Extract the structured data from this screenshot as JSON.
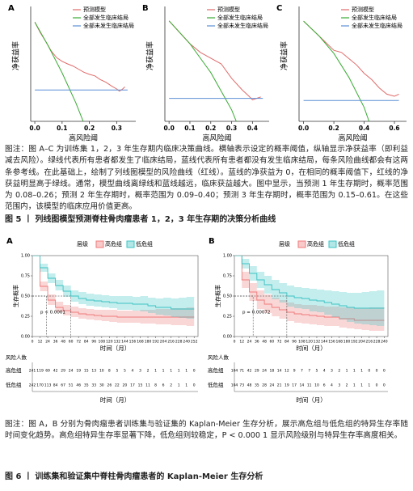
{
  "figure5": {
    "panels": [
      {
        "label": "A",
        "y_label": "净获益率",
        "x_label": "高风险阈",
        "xlim": [
          -0.015,
          0.37
        ],
        "ylim": [
          -0.06,
          0.16
        ],
        "xticks": [
          {
            "value": 0,
            "label": "0.0"
          },
          0.1,
          0.2,
          0.3
        ],
        "series": [
          {
            "name": "预测模型",
            "color": "#e06a6a",
            "x": [
              0,
              0.02,
              0.04,
              0.06,
              0.08,
              0.1,
              0.12,
              0.14,
              0.16,
              0.18,
              0.2,
              0.22,
              0.24,
              0.26,
              0.28,
              0.3,
              0.31,
              0.32,
              0.33
            ],
            "values": [
              0.13,
              0.11,
              0.093,
              0.075,
              0.062,
              0.055,
              0.05,
              0.046,
              0.04,
              0.034,
              0.03,
              0.027,
              0.02,
              0.015,
              0.008,
              0.002,
              -0.002,
              0.001,
              0.006
            ]
          },
          {
            "name": "全部发生临床结局",
            "color": "#3aaa35",
            "x": [
              0,
              0.05,
              0.1,
              0.15,
              0.2
            ],
            "values": [
              0.13,
              0.084,
              0.033,
              -0.024,
              -0.09
            ]
          },
          {
            "name": "全部未发生临床结局",
            "color": "#5b8fd6",
            "x": [
              0,
              0.34
            ],
            "values": [
              0,
              0
            ]
          }
        ]
      },
      {
        "label": "B",
        "y_label": "净获益率",
        "x_label": "高风险阈",
        "xlim": [
          -0.02,
          0.48
        ],
        "ylim": [
          -0.08,
          0.32
        ],
        "xticks": [
          {
            "value": 0,
            "label": "0.0"
          },
          0.1,
          0.2,
          0.3,
          0.4
        ],
        "series": [
          {
            "name": "预测模型",
            "color": "#e06a6a",
            "x": [
              0,
              0.05,
              0.1,
              0.15,
              0.2,
              0.25,
              0.3,
              0.35,
              0.38,
              0.4,
              0.42,
              0.44
            ],
            "values": [
              0.27,
              0.23,
              0.19,
              0.16,
              0.14,
              0.12,
              0.07,
              0.03,
              0.01,
              -0.005,
              0,
              0.005
            ]
          },
          {
            "name": "全部发生临床结局",
            "color": "#3aaa35",
            "x": [
              0,
              0.1,
              0.2,
              0.3,
              0.4
            ],
            "values": [
              0.27,
              0.19,
              0.09,
              -0.04,
              -0.22
            ]
          },
          {
            "name": "全部未发生临床结局",
            "color": "#5b8fd6",
            "x": [
              0,
              0.45
            ],
            "values": [
              0,
              0
            ]
          }
        ]
      },
      {
        "label": "C",
        "y_label": "净获益率",
        "x_label": "高风险阈",
        "xlim": [
          -0.03,
          0.68
        ],
        "ylim": [
          -0.1,
          0.45
        ],
        "xticks": [
          {
            "value": 0,
            "label": "0.0"
          },
          0.2,
          0.4,
          0.6
        ],
        "series": [
          {
            "name": "预测模型",
            "color": "#e06a6a",
            "x": [
              0,
              0.1,
              0.2,
              0.25,
              0.3,
              0.35,
              0.4,
              0.45,
              0.5,
              0.55,
              0.6,
              0.63
            ],
            "values": [
              0.38,
              0.31,
              0.24,
              0.23,
              0.2,
              0.17,
              0.13,
              0.1,
              0.06,
              0.03,
              0.02,
              0.03
            ]
          },
          {
            "name": "全部发生临床结局",
            "color": "#3aaa35",
            "x": [
              0,
              0.1,
              0.2,
              0.3,
              0.4,
              0.5
            ],
            "values": [
              0.38,
              0.31,
              0.225,
              0.11,
              -0.033,
              -0.24
            ]
          },
          {
            "name": "全部未发生临床结局",
            "color": "#5b8fd6",
            "x": [
              0,
              0.63
            ],
            "values": [
              0,
              0
            ]
          }
        ]
      }
    ],
    "caption": "图注：图 A–C 为训练集 1，2，3 年生存期内临床决策曲线。横轴表示设定的概率阈值，纵轴显示净获益率（即利益减去风险）。绿线代表所有患者都发生了临床结局，蓝线代表所有患者都没有发生临床结局，每条风险曲线都会有这两条参考线。在此基础上，绘制了列线图模型的风险曲线（红线）。蓝线的净获益为 0，在相同的概率阈值下，红线的净获益明显高于绿线。通常，模型曲线离绿线和蓝线越远，临床获益越大。图中显示，当预测 1 年生存期时，概率范围为 0.08–0.26；预测 2 年生存期时，概率范围为 0.09–0.40；预测 3 年生存期时，概率范围为 0.15–0.61。在这些范围内，该模型的临床应用价值更高。",
    "title": "图 5 丨 列线图模型预测脊柱骨肉瘤患者 1，2，3 年生存期的决策分析曲线"
  },
  "figure6": {
    "panels": [
      {
        "label": "A",
        "legend_title": "层级",
        "y_label": "生存概率",
        "x_label": "时间（月）",
        "p_value": "p < 0.0001",
        "median_line": 0.5,
        "xlim": [
          0,
          258
        ],
        "ylim": [
          0,
          1
        ],
        "yticks": [
          {
            "value": 0,
            "label": "0.00"
          },
          {
            "value": 0.25,
            "label": "0.25"
          },
          {
            "value": 0.5,
            "label": "0.50"
          },
          {
            "value": 0.75,
            "label": "0.75"
          },
          {
            "value": 1,
            "label": "1.00"
          }
        ],
        "xticks": [
          0,
          12,
          24,
          36,
          48,
          60,
          72,
          84,
          96,
          108,
          120,
          132,
          144,
          156,
          168,
          180,
          192,
          204,
          216,
          228,
          240,
          252
        ],
        "series": [
          {
            "name": "高危组",
            "color": "#f07a7a",
            "median": 22,
            "values": [
              1,
              0.62,
              0.45,
              0.36,
              0.32,
              0.3,
              0.28,
              0.27,
              0.26,
              0.25,
              0.25,
              0.24,
              0.24,
              0.24,
              0.24,
              0.24,
              0.24,
              0.24,
              0.24,
              0.24,
              0.24,
              0.24
            ],
            "ci_upper": [
              1,
              0.68,
              0.52,
              0.43,
              0.39,
              0.37,
              0.35,
              0.34,
              0.33,
              0.33,
              0.33,
              0.32,
              0.32,
              0.32,
              0.33,
              0.33,
              0.34,
              0.34,
              0.35,
              0.35,
              0.36,
              0.36
            ],
            "ci_lower": [
              1,
              0.56,
              0.39,
              0.3,
              0.26,
              0.24,
              0.22,
              0.21,
              0.2,
              0.19,
              0.18,
              0.17,
              0.17,
              0.17,
              0.16,
              0.16,
              0.15,
              0.15,
              0.14,
              0.14,
              0.13,
              0.13
            ]
          },
          {
            "name": "低危组",
            "color": "#3cc4c4",
            "median": 60,
            "values": [
              1,
              0.85,
              0.72,
              0.63,
              0.56,
              0.5,
              0.47,
              0.45,
              0.44,
              0.43,
              0.42,
              0.41,
              0.41,
              0.4,
              0.4,
              0.38,
              0.36,
              0.36,
              0.34,
              0.34,
              0.34,
              0.34
            ],
            "ci_upper": [
              1,
              0.9,
              0.78,
              0.7,
              0.63,
              0.57,
              0.55,
              0.53,
              0.52,
              0.51,
              0.5,
              0.5,
              0.5,
              0.49,
              0.5,
              0.48,
              0.47,
              0.48,
              0.47,
              0.48,
              0.49,
              0.5
            ],
            "ci_lower": [
              1,
              0.8,
              0.66,
              0.57,
              0.49,
              0.43,
              0.4,
              0.38,
              0.37,
              0.36,
              0.35,
              0.33,
              0.33,
              0.32,
              0.31,
              0.29,
              0.27,
              0.26,
              0.24,
              0.23,
              0.22,
              0.21
            ]
          }
        ],
        "risk_table": {
          "title": "风险人数",
          "x_label": "时间（月）",
          "rows": [
            {
              "name": "高危组",
              "values": [
                241,
                119,
                69,
                42,
                29,
                24,
                19,
                15,
                13,
                10,
                8,
                5,
                5,
                4,
                3,
                2,
                1,
                1,
                1,
                1,
                1,
                0
              ]
            },
            {
              "name": "低危组",
              "values": [
                242,
                170,
                113,
                84,
                67,
                51,
                46,
                35,
                33,
                30,
                26,
                22,
                20,
                17,
                15,
                11,
                8,
                6,
                2,
                1,
                1,
                0
              ]
            }
          ]
        }
      },
      {
        "label": "B",
        "legend_title": "层级",
        "y_label": "生存概率",
        "x_label": "时间（月）",
        "p_value": "p = 0.00072",
        "median_line": 0.5,
        "xlim": [
          0,
          246
        ],
        "ylim": [
          0,
          1
        ],
        "yticks": [
          {
            "value": 0,
            "label": "0.00"
          },
          {
            "value": 0.25,
            "label": "0.25"
          },
          {
            "value": 0.5,
            "label": "0.50"
          },
          {
            "value": 0.75,
            "label": "0.75"
          },
          {
            "value": 1,
            "label": "1.00"
          }
        ],
        "xticks": [
          0,
          12,
          24,
          36,
          48,
          60,
          72,
          84,
          96,
          108,
          120,
          132,
          144,
          156,
          168,
          180,
          192,
          204,
          216,
          228,
          240
        ],
        "series": [
          {
            "name": "高危组",
            "color": "#f07a7a",
            "median": 30,
            "values": [
              1,
              0.7,
              0.55,
              0.45,
              0.4,
              0.36,
              0.33,
              0.3,
              0.28,
              0.27,
              0.26,
              0.25,
              0.24,
              0.24,
              0.22,
              0.22,
              0.2,
              0.2,
              0.2,
              0.2,
              0.2
            ],
            "ci_upper": [
              1,
              0.8,
              0.66,
              0.57,
              0.52,
              0.48,
              0.45,
              0.42,
              0.4,
              0.39,
              0.39,
              0.38,
              0.37,
              0.37,
              0.36,
              0.36,
              0.35,
              0.35,
              0.36,
              0.36,
              0.37
            ],
            "ci_lower": [
              1,
              0.6,
              0.44,
              0.34,
              0.29,
              0.25,
              0.22,
              0.19,
              0.17,
              0.16,
              0.15,
              0.14,
              0.13,
              0.13,
              0.11,
              0.1,
              0.09,
              0.08,
              0.07,
              0.07,
              0.06
            ]
          },
          {
            "name": "低危组",
            "color": "#3cc4c4",
            "median": 84,
            "values": [
              1,
              0.9,
              0.78,
              0.7,
              0.64,
              0.58,
              0.54,
              0.5,
              0.48,
              0.47,
              0.45,
              0.44,
              0.42,
              0.4,
              0.38,
              0.36,
              0.35,
              0.35,
              0.35,
              0.35,
              0.35
            ],
            "ci_upper": [
              1,
              0.96,
              0.87,
              0.8,
              0.75,
              0.7,
              0.66,
              0.63,
              0.61,
              0.6,
              0.59,
              0.58,
              0.57,
              0.56,
              0.55,
              0.54,
              0.54,
              0.55,
              0.56,
              0.57,
              0.58
            ],
            "ci_lower": [
              1,
              0.84,
              0.69,
              0.6,
              0.53,
              0.46,
              0.42,
              0.37,
              0.35,
              0.34,
              0.31,
              0.3,
              0.27,
              0.24,
              0.21,
              0.18,
              0.16,
              0.15,
              0.14,
              0.13,
              0.12
            ]
          }
        ],
        "risk_table": {
          "title": "风险人数",
          "x_label": "时间（月）",
          "rows": [
            {
              "name": "高危组",
              "values": [
                104,
                71,
                42,
                29,
                24,
                18,
                14,
                12,
                9,
                7,
                7,
                5,
                4,
                3,
                2,
                1,
                1,
                1,
                0,
                0,
                0
              ]
            },
            {
              "name": "低危组",
              "values": [
                104,
                73,
                48,
                35,
                28,
                24,
                21,
                19,
                17,
                14,
                11,
                10,
                6,
                4,
                3,
                2,
                1,
                1,
                1,
                0,
                0
              ]
            }
          ]
        }
      }
    ],
    "caption": "图注：图 A，B 分别为骨肉瘤患者训练集与验证集的 Kaplan-Meier 生存分析，展示高危组与低危组的特异生存率随时间变化趋势。高危组特异生存率显著下降，低危组则较稳定，P < 0.000 1 显示风险级别与特异生存率高度相关。",
    "title": "图 6 丨 训练集和验证集中脊柱骨肉瘤患者的 Kaplan-Meier 生存分析"
  }
}
